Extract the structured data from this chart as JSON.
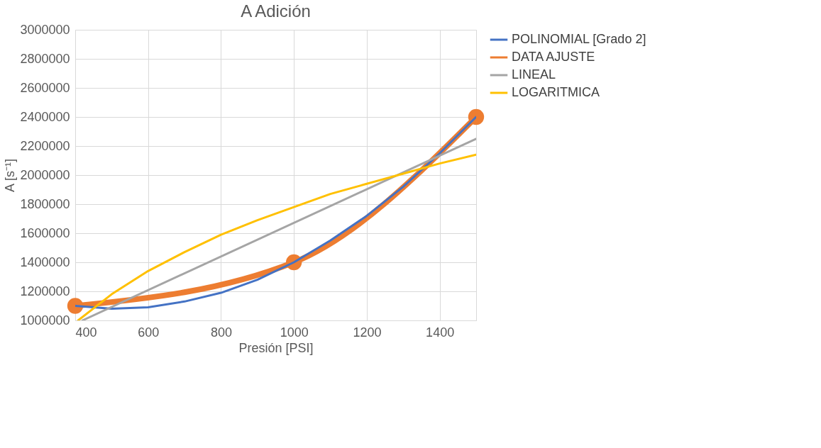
{
  "chart_data": {
    "type": "line",
    "title": "A Adición",
    "xlabel": "Presión [PSI]",
    "ylabel": "A [s⁻¹]",
    "xlim": [
      400,
      1500
    ],
    "xticks": [
      400,
      600,
      800,
      1000,
      1200,
      1400
    ],
    "ylim": [
      1000000,
      3000000
    ],
    "yticks": [
      1000000,
      1200000,
      1400000,
      1600000,
      1800000,
      2000000,
      2200000,
      2400000,
      2600000,
      2800000,
      3000000
    ],
    "grid": true,
    "legend": "right",
    "line_style": "solid",
    "series": [
      {
        "name": "POLINOMIAL [Grado 2]",
        "color": "#4472c4",
        "marker": "none",
        "x": [
          400,
          500,
          600,
          700,
          800,
          900,
          1000,
          1100,
          1200,
          1300,
          1400,
          1500
        ],
        "values": [
          1100000,
          1080000,
          1090000,
          1130000,
          1190000,
          1280000,
          1400000,
          1550000,
          1720000,
          1920000,
          2150000,
          2400000
        ]
      },
      {
        "name": "DATA AJUSTE",
        "color": "#ed7d31",
        "marker": "circle",
        "x": [
          400,
          1000,
          1500
        ],
        "values": [
          1100000,
          1400000,
          2400000
        ]
      },
      {
        "name": "LINEAL",
        "color": "#a5a5a5",
        "marker": "none",
        "x": [
          420,
          1500
        ],
        "values": [
          1000000,
          2250000
        ]
      },
      {
        "name": "LOGARITMICA",
        "color": "#ffc000",
        "marker": "none",
        "x": [
          408,
          500,
          600,
          700,
          800,
          900,
          1000,
          1100,
          1200,
          1300,
          1400,
          1500
        ],
        "values": [
          1000000,
          1180000,
          1340000,
          1470000,
          1590000,
          1690000,
          1780000,
          1870000,
          1940000,
          2010000,
          2080000,
          2140000
        ]
      }
    ]
  }
}
